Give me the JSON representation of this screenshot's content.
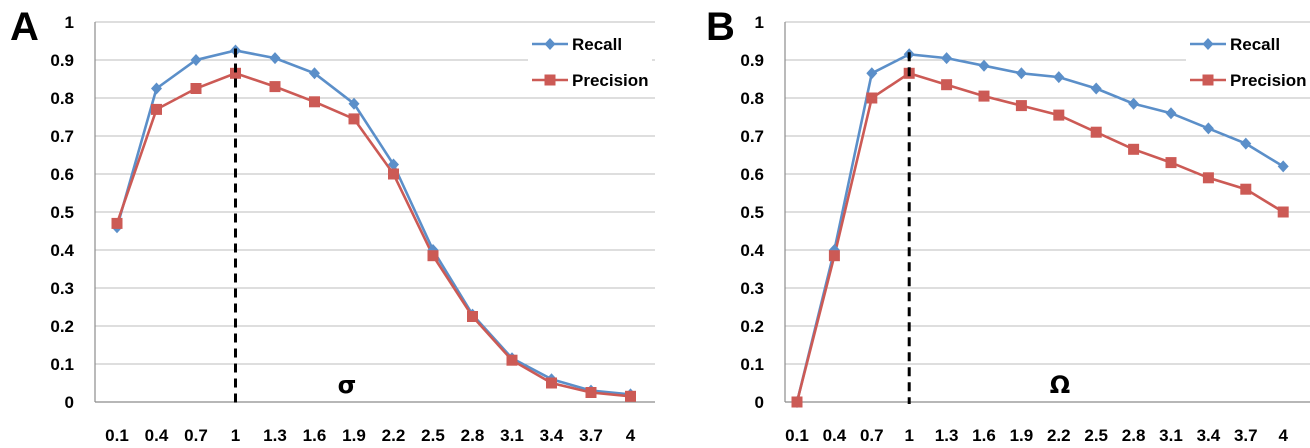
{
  "chart_data": [
    {
      "type": "line",
      "panel_label": "A",
      "annotation": "σ",
      "x": [
        0.1,
        0.4,
        0.7,
        1,
        1.3,
        1.6,
        1.9,
        2.2,
        2.5,
        2.8,
        3.1,
        3.4,
        3.7,
        4
      ],
      "x_tick_labels": [
        "0.1",
        "0.4",
        "0.7",
        "1",
        "1.3",
        "1.6",
        "1.9",
        "2.2",
        "2.5",
        "2.8",
        "3.1",
        "3.4",
        "3.7",
        "4"
      ],
      "ylim": [
        0,
        1
      ],
      "y_tick_labels": [
        "0",
        "0.1",
        "0.2",
        "0.3",
        "0.4",
        "0.5",
        "0.6",
        "0.7",
        "0.8",
        "0.9",
        "1"
      ],
      "vertical_dashed_line_at": 1,
      "grid": true,
      "legend_position": "top-right",
      "series": [
        {
          "name": "Recall",
          "color": "#5b8fc9",
          "marker": "diamond",
          "values": [
            0.46,
            0.825,
            0.9,
            0.925,
            0.905,
            0.865,
            0.785,
            0.625,
            0.4,
            0.23,
            0.115,
            0.06,
            0.03,
            0.02
          ]
        },
        {
          "name": "Precision",
          "color": "#cc5a55",
          "marker": "square",
          "values": [
            0.47,
            0.77,
            0.825,
            0.865,
            0.83,
            0.79,
            0.745,
            0.6,
            0.385,
            0.225,
            0.11,
            0.05,
            0.025,
            0.015
          ]
        }
      ]
    },
    {
      "type": "line",
      "panel_label": "B",
      "annotation": "Ω",
      "x": [
        0.1,
        0.4,
        0.7,
        1,
        1.3,
        1.6,
        1.9,
        2.2,
        2.5,
        2.8,
        3.1,
        3.4,
        3.7,
        4
      ],
      "x_tick_labels": [
        "0.1",
        "0.4",
        "0.7",
        "1",
        "1.3",
        "1.6",
        "1.9",
        "2.2",
        "2.5",
        "2.8",
        "3.1",
        "3.4",
        "3.7",
        "4"
      ],
      "ylim": [
        0,
        1
      ],
      "y_tick_labels": [
        "0",
        "0.1",
        "0.2",
        "0.3",
        "0.4",
        "0.5",
        "0.6",
        "0.7",
        "0.8",
        "0.9",
        "1"
      ],
      "vertical_dashed_line_at": 1,
      "grid": true,
      "legend_position": "top-right",
      "series": [
        {
          "name": "Recall",
          "color": "#5b8fc9",
          "marker": "diamond",
          "values": [
            0.0,
            0.4,
            0.865,
            0.915,
            0.905,
            0.885,
            0.865,
            0.855,
            0.825,
            0.785,
            0.76,
            0.72,
            0.68,
            0.62
          ]
        },
        {
          "name": "Precision",
          "color": "#cc5a55",
          "marker": "square",
          "values": [
            0.0,
            0.385,
            0.8,
            0.865,
            0.835,
            0.805,
            0.78,
            0.755,
            0.71,
            0.665,
            0.63,
            0.59,
            0.56,
            0.5
          ]
        }
      ]
    }
  ]
}
